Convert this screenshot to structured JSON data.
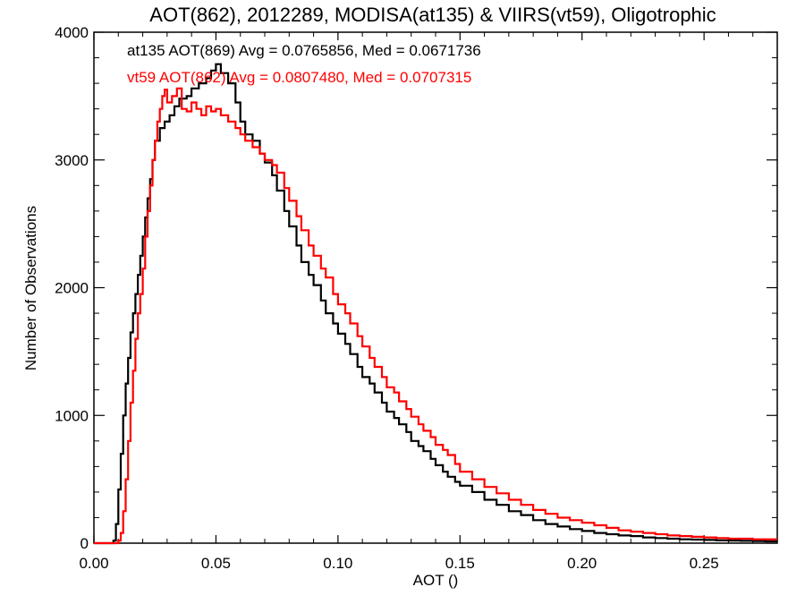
{
  "chart_data": {
    "type": "line",
    "title": "AOT(862), 2012289, MODISA(at135) & VIIRS(vt59), Oligotrophic",
    "xlabel": "AOT ()",
    "ylabel": "Number of Observations",
    "xlim": [
      0.0,
      0.28
    ],
    "ylim": [
      0,
      4000
    ],
    "x_ticks": [
      "0.00",
      "0.05",
      "0.10",
      "0.15",
      "0.20",
      "0.25"
    ],
    "y_ticks": [
      "0",
      "1000",
      "2000",
      "3000",
      "4000"
    ],
    "grid": false,
    "style": "step histogram",
    "series": [
      {
        "name": "at135",
        "color": "#000000",
        "stats_label": "at135 AOT(869) Avg = 0.0765856, Med = 0.0671736",
        "x": [
          0.0,
          0.005,
          0.008,
          0.009,
          0.01,
          0.011,
          0.012,
          0.013,
          0.014,
          0.015,
          0.016,
          0.017,
          0.018,
          0.019,
          0.02,
          0.021,
          0.022,
          0.023,
          0.024,
          0.025,
          0.027,
          0.029,
          0.031,
          0.033,
          0.035,
          0.038,
          0.04,
          0.043,
          0.046,
          0.048,
          0.05,
          0.052,
          0.055,
          0.058,
          0.06,
          0.062,
          0.065,
          0.068,
          0.07,
          0.073,
          0.075,
          0.078,
          0.08,
          0.083,
          0.085,
          0.088,
          0.09,
          0.093,
          0.095,
          0.098,
          0.1,
          0.103,
          0.105,
          0.108,
          0.11,
          0.113,
          0.115,
          0.118,
          0.12,
          0.123,
          0.125,
          0.128,
          0.13,
          0.133,
          0.135,
          0.138,
          0.14,
          0.143,
          0.145,
          0.148,
          0.15,
          0.155,
          0.16,
          0.165,
          0.17,
          0.175,
          0.18,
          0.185,
          0.19,
          0.195,
          0.2,
          0.205,
          0.21,
          0.215,
          0.22,
          0.225,
          0.23,
          0.235,
          0.24,
          0.245,
          0.25,
          0.255,
          0.26,
          0.265,
          0.27,
          0.275,
          0.28
        ],
        "y": [
          0,
          0,
          20,
          150,
          420,
          700,
          1000,
          1250,
          1450,
          1650,
          1800,
          1950,
          2100,
          2250,
          2400,
          2550,
          2700,
          2850,
          3000,
          3150,
          3250,
          3300,
          3350,
          3420,
          3480,
          3500,
          3560,
          3600,
          3640,
          3700,
          3750,
          3680,
          3600,
          3450,
          3300,
          3200,
          3150,
          3050,
          2980,
          2880,
          2760,
          2600,
          2480,
          2330,
          2200,
          2100,
          2020,
          1900,
          1800,
          1720,
          1640,
          1560,
          1480,
          1380,
          1300,
          1250,
          1180,
          1100,
          1030,
          980,
          930,
          870,
          800,
          760,
          720,
          660,
          610,
          560,
          520,
          480,
          450,
          400,
          340,
          300,
          250,
          220,
          180,
          150,
          130,
          110,
          95,
          80,
          70,
          60,
          55,
          45,
          40,
          35,
          30,
          28,
          25,
          22,
          20,
          18,
          16,
          15,
          15
        ]
      },
      {
        "name": "vt59",
        "color": "#ff0000",
        "stats_label": "vt59 AOT(862) Avg = 0.0807480, Med = 0.0707315",
        "x": [
          0.0,
          0.008,
          0.01,
          0.011,
          0.012,
          0.013,
          0.014,
          0.015,
          0.016,
          0.017,
          0.018,
          0.019,
          0.02,
          0.021,
          0.022,
          0.023,
          0.024,
          0.025,
          0.026,
          0.027,
          0.028,
          0.029,
          0.03,
          0.032,
          0.034,
          0.036,
          0.038,
          0.04,
          0.042,
          0.044,
          0.046,
          0.048,
          0.05,
          0.052,
          0.055,
          0.058,
          0.06,
          0.062,
          0.065,
          0.068,
          0.07,
          0.073,
          0.075,
          0.078,
          0.08,
          0.083,
          0.085,
          0.088,
          0.09,
          0.093,
          0.095,
          0.098,
          0.1,
          0.103,
          0.105,
          0.108,
          0.11,
          0.113,
          0.115,
          0.118,
          0.12,
          0.123,
          0.125,
          0.128,
          0.13,
          0.133,
          0.135,
          0.138,
          0.14,
          0.143,
          0.145,
          0.148,
          0.15,
          0.155,
          0.16,
          0.165,
          0.17,
          0.175,
          0.18,
          0.185,
          0.19,
          0.195,
          0.2,
          0.205,
          0.21,
          0.215,
          0.22,
          0.225,
          0.23,
          0.235,
          0.24,
          0.245,
          0.25,
          0.255,
          0.26,
          0.265,
          0.27,
          0.275,
          0.28
        ],
        "y": [
          0,
          0,
          20,
          80,
          250,
          500,
          800,
          1100,
          1350,
          1600,
          1800,
          1950,
          2150,
          2400,
          2600,
          2800,
          3000,
          3150,
          3300,
          3400,
          3500,
          3550,
          3450,
          3500,
          3560,
          3400,
          3380,
          3450,
          3400,
          3350,
          3420,
          3380,
          3400,
          3350,
          3300,
          3250,
          3200,
          3150,
          3100,
          3050,
          3000,
          2960,
          2900,
          2780,
          2680,
          2560,
          2450,
          2330,
          2250,
          2150,
          2080,
          1950,
          1870,
          1800,
          1720,
          1620,
          1540,
          1450,
          1380,
          1300,
          1220,
          1180,
          1110,
          1050,
          990,
          930,
          880,
          830,
          770,
          730,
          690,
          620,
          560,
          500,
          440,
          390,
          340,
          300,
          260,
          230,
          200,
          180,
          160,
          140,
          120,
          100,
          90,
          80,
          70,
          60,
          55,
          50,
          45,
          40,
          35,
          35,
          30,
          30,
          30
        ]
      }
    ]
  }
}
